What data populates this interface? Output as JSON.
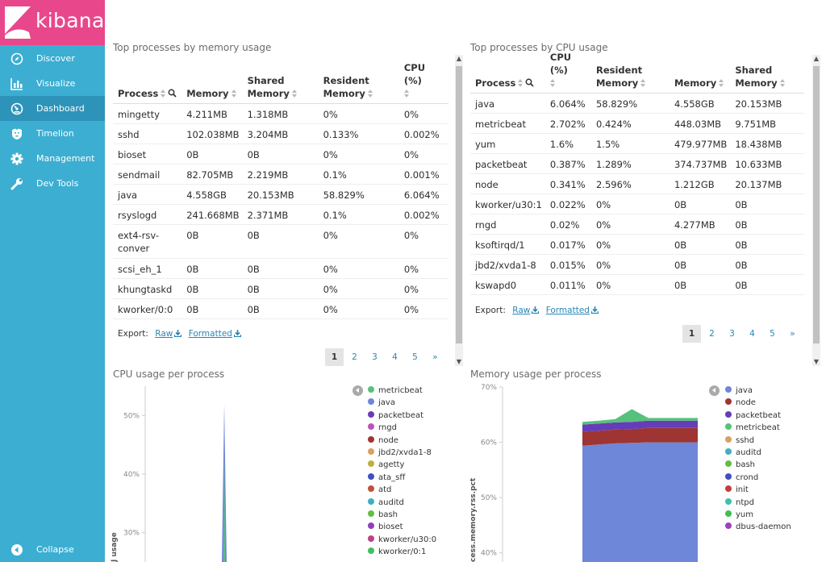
{
  "app": {
    "name": "kibana"
  },
  "nav": {
    "items": [
      {
        "label": "Discover",
        "icon": "compass-icon"
      },
      {
        "label": "Visualize",
        "icon": "bar-chart-icon"
      },
      {
        "label": "Dashboard",
        "icon": "dashboard-icon",
        "active": true
      },
      {
        "label": "Timelion",
        "icon": "timelion-icon"
      },
      {
        "label": "Management",
        "icon": "gear-icon"
      },
      {
        "label": "Dev Tools",
        "icon": "wrench-icon"
      }
    ],
    "collapse": "Collapse"
  },
  "mem_table": {
    "title": "Top processes by memory usage",
    "headers": [
      "Process",
      "Memory",
      "Shared Memory",
      "Resident Memory",
      "CPU (%)"
    ],
    "rows": [
      [
        "mingetty",
        "4.211MB",
        "1.318MB",
        "0%",
        "0%"
      ],
      [
        "sshd",
        "102.038MB",
        "3.204MB",
        "0.133%",
        "0.002%"
      ],
      [
        "bioset",
        "0B",
        "0B",
        "0%",
        "0%"
      ],
      [
        "sendmail",
        "82.705MB",
        "2.219MB",
        "0.1%",
        "0.001%"
      ],
      [
        "java",
        "4.558GB",
        "20.153MB",
        "58.829%",
        "6.064%"
      ],
      [
        "rsyslogd",
        "241.668MB",
        "2.371MB",
        "0.1%",
        "0.002%"
      ],
      [
        "ext4-rsv-conver",
        "0B",
        "0B",
        "0%",
        "0%"
      ],
      [
        "scsi_eh_1",
        "0B",
        "0B",
        "0%",
        "0%"
      ],
      [
        "khungtaskd",
        "0B",
        "0B",
        "0%",
        "0%"
      ],
      [
        "kworker/0:0",
        "0B",
        "0B",
        "0%",
        "0%"
      ]
    ],
    "export_label": "Export:",
    "raw": "Raw",
    "formatted": "Formatted",
    "pages": [
      "1",
      "2",
      "3",
      "4",
      "5",
      "»"
    ]
  },
  "cpu_table": {
    "title": "Top processes by CPU usage",
    "headers": [
      "Process",
      "CPU (%)",
      "Resident Memory",
      "Memory",
      "Shared Memory"
    ],
    "rows": [
      [
        "java",
        "6.064%",
        "58.829%",
        "4.558GB",
        "20.153MB"
      ],
      [
        "metricbeat",
        "2.702%",
        "0.424%",
        "448.03MB",
        "9.751MB"
      ],
      [
        "yum",
        "1.6%",
        "1.5%",
        "479.977MB",
        "18.438MB"
      ],
      [
        "packetbeat",
        "0.387%",
        "1.289%",
        "374.737MB",
        "10.633MB"
      ],
      [
        "node",
        "0.341%",
        "2.596%",
        "1.212GB",
        "20.137MB"
      ],
      [
        "kworker/u30:1",
        "0.022%",
        "0%",
        "0B",
        "0B"
      ],
      [
        "rngd",
        "0.02%",
        "0%",
        "4.277MB",
        "0B"
      ],
      [
        "ksoftirqd/1",
        "0.017%",
        "0%",
        "0B",
        "0B"
      ],
      [
        "jbd2/xvda1-8",
        "0.015%",
        "0%",
        "0B",
        "0B"
      ],
      [
        "kswapd0",
        "0.011%",
        "0%",
        "0B",
        "0B"
      ]
    ],
    "export_label": "Export:",
    "raw": "Raw",
    "formatted": "Formatted",
    "pages": [
      "1",
      "2",
      "3",
      "4",
      "5",
      "»"
    ]
  },
  "cpu_chart": {
    "title": "CPU usage per process",
    "ylabel_fragment": "J usage",
    "legend": [
      {
        "name": "metricbeat",
        "color": "#57c17b"
      },
      {
        "name": "java",
        "color": "#6f87d8"
      },
      {
        "name": "packetbeat",
        "color": "#663db8"
      },
      {
        "name": "rngd",
        "color": "#bc52bc"
      },
      {
        "name": "node",
        "color": "#9e3533"
      },
      {
        "name": "jbd2/xvda1-8",
        "color": "#daa05d"
      },
      {
        "name": "agetty",
        "color": "#bfaf40"
      },
      {
        "name": "ata_sff",
        "color": "#4050bf"
      },
      {
        "name": "atd",
        "color": "#bf5040"
      },
      {
        "name": "auditd",
        "color": "#40afbf"
      },
      {
        "name": "bash",
        "color": "#62bf40"
      },
      {
        "name": "bioset",
        "color": "#8e40bf"
      },
      {
        "name": "kworker/u30:0",
        "color": "#bf4088"
      },
      {
        "name": "kworker/0:1",
        "color": "#40bf61"
      }
    ]
  },
  "mem_chart": {
    "title": "Memory usage per process",
    "ylabel_fragment": "cess.memory.rss.pct",
    "legend": [
      {
        "name": "java",
        "color": "#6f87d8"
      },
      {
        "name": "node",
        "color": "#9e3533"
      },
      {
        "name": "packetbeat",
        "color": "#663db8"
      },
      {
        "name": "metricbeat",
        "color": "#57c17b"
      },
      {
        "name": "sshd",
        "color": "#daa05d"
      },
      {
        "name": "auditd",
        "color": "#40afbf"
      },
      {
        "name": "bash",
        "color": "#62bf40"
      },
      {
        "name": "crond",
        "color": "#4050bf"
      },
      {
        "name": "init",
        "color": "#bf4040"
      },
      {
        "name": "ntpd",
        "color": "#40bfaf"
      },
      {
        "name": "yum",
        "color": "#40bf50"
      },
      {
        "name": "dbus-daemon",
        "color": "#9e40bf"
      }
    ]
  },
  "chart_data": [
    {
      "type": "area",
      "title": "CPU usage per process",
      "ylabel": "J usage",
      "ylim": [
        25,
        55
      ],
      "yticks": [
        "50%",
        "40%",
        "30%"
      ],
      "series": [
        {
          "name": "java",
          "values": [
            0,
            52,
            0
          ]
        },
        {
          "name": "metricbeat",
          "values": [
            0,
            1,
            0
          ]
        }
      ]
    },
    {
      "type": "area",
      "title": "Memory usage per process",
      "ylabel": "cess.memory.rss.pct",
      "ylim": [
        35,
        70
      ],
      "yticks": [
        "70%",
        "60%",
        "50%",
        "40%"
      ],
      "series": [
        {
          "name": "java",
          "values": [
            59.4,
            59.6,
            59.8,
            59.9,
            60.0,
            60.0,
            60.0,
            60.0
          ]
        },
        {
          "name": "node",
          "values": [
            2.5,
            2.5,
            2.5,
            2.5,
            2.6,
            2.6,
            2.6,
            2.6
          ]
        },
        {
          "name": "packetbeat",
          "values": [
            1.3,
            1.3,
            1.3,
            1.3,
            1.3,
            1.3,
            1.3,
            1.3
          ]
        },
        {
          "name": "metricbeat",
          "values": [
            0.5,
            0.5,
            0.6,
            2.3,
            0.5,
            0.5,
            0.5,
            0.5
          ]
        }
      ]
    }
  ]
}
